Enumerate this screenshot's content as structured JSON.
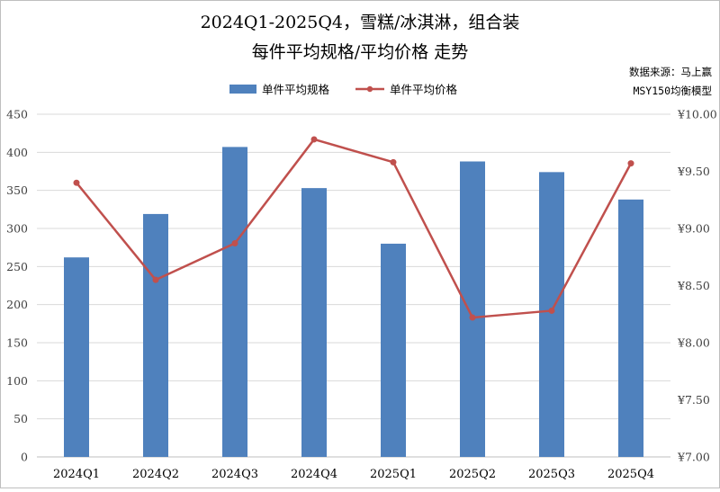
{
  "chart_data": {
    "type": "bar",
    "title_line1": "2024Q1-2025Q4，雪糕/冰淇淋，组合装",
    "title_line2": "每件平均规格/平均价格 走势",
    "source_line1": "数据来源：马上赢",
    "source_line2": "MSY150均衡模型",
    "categories": [
      "2024Q1",
      "2024Q2",
      "2024Q3",
      "2024Q4",
      "2025Q1",
      "2025Q2",
      "2025Q3",
      "2025Q4"
    ],
    "series": [
      {
        "name": "单件平均规格",
        "type": "bar",
        "axis": "left",
        "color": "#4f81bd",
        "values": [
          262,
          319,
          407,
          353,
          280,
          388,
          374,
          338
        ]
      },
      {
        "name": "单件平均价格",
        "type": "line",
        "axis": "right",
        "color": "#c0504d",
        "values": [
          9.4,
          8.55,
          8.87,
          9.78,
          9.58,
          8.22,
          8.28,
          9.57
        ]
      }
    ],
    "left_axis": {
      "ylim": [
        0,
        450
      ],
      "ticks": [
        "0",
        "50",
        "100",
        "150",
        "200",
        "250",
        "300",
        "350",
        "400",
        "450"
      ]
    },
    "right_axis": {
      "ylim": [
        7.0,
        10.0
      ],
      "ticks": [
        "¥7.00",
        "¥7.50",
        "¥8.00",
        "¥8.50",
        "¥9.00",
        "¥9.50",
        "¥10.00"
      ]
    },
    "grid": true,
    "legend_position": "top-center"
  }
}
